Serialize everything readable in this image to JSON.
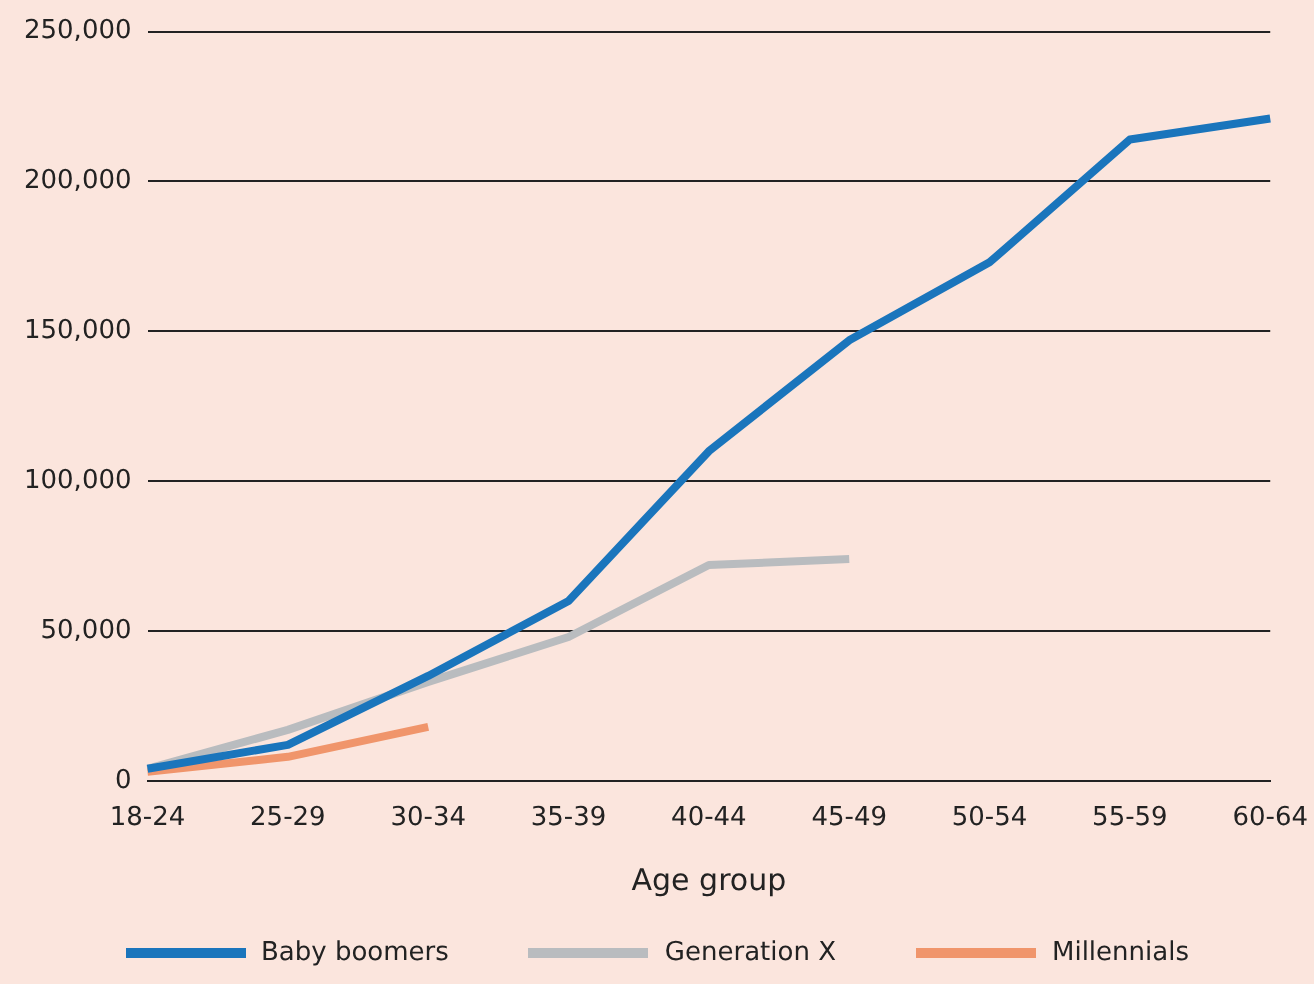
{
  "chart_data": {
    "type": "line",
    "xlabel": "Age group",
    "categories": [
      "18-24",
      "25-29",
      "30-34",
      "35-39",
      "40-44",
      "45-49",
      "50-54",
      "55-59",
      "60-64"
    ],
    "series": [
      {
        "name": "Baby boomers",
        "color": "#1a75bc",
        "values": [
          4000,
          12000,
          35000,
          60000,
          110000,
          147000,
          173000,
          214000,
          221000
        ]
      },
      {
        "name": "Generation X",
        "color": "#b9bcbf",
        "values": [
          4000,
          17000,
          33000,
          48000,
          72000,
          74000,
          null,
          null,
          null
        ]
      },
      {
        "name": "Millennials",
        "color": "#f0956b",
        "values": [
          3000,
          8000,
          18000,
          null,
          null,
          null,
          null,
          null,
          null
        ]
      }
    ],
    "ylim": [
      0,
      250000
    ],
    "yticks": [
      {
        "value": 0,
        "label": "0"
      },
      {
        "value": 50000,
        "label": "50,000"
      },
      {
        "value": 100000,
        "label": "100,000"
      },
      {
        "value": 150000,
        "label": "150,000"
      },
      {
        "value": 200000,
        "label": "200,000"
      },
      {
        "value": 250000,
        "label": "250,000"
      }
    ],
    "grid": "y",
    "legend": "bottom",
    "marker": "none",
    "line_style": "solid"
  }
}
